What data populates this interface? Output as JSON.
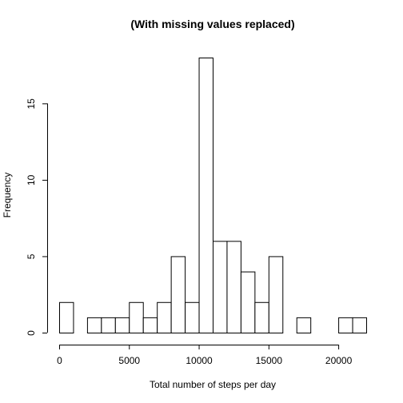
{
  "chart_data": {
    "type": "bar",
    "title": "(With missing values replaced)",
    "xlabel": "Total number of steps per day",
    "ylabel": "Frequency",
    "bin_width": 1000,
    "bins_start": [
      0,
      1000,
      2000,
      3000,
      4000,
      5000,
      6000,
      7000,
      8000,
      9000,
      10000,
      11000,
      12000,
      13000,
      14000,
      15000,
      16000,
      17000,
      18000,
      19000,
      20000,
      21000
    ],
    "values": [
      2,
      0,
      1,
      1,
      1,
      2,
      1,
      2,
      5,
      2,
      18,
      6,
      6,
      4,
      2,
      5,
      0,
      1,
      0,
      0,
      1,
      1
    ],
    "xlim": [
      0,
      22000
    ],
    "ylim": [
      0,
      18
    ],
    "x_ticks": [
      0,
      5000,
      10000,
      15000,
      20000
    ],
    "x_tick_labels": [
      "0",
      "5000",
      "10000",
      "15000",
      "20000"
    ],
    "y_ticks": [
      0,
      5,
      10,
      15
    ],
    "y_tick_labels": [
      "0",
      "5",
      "10",
      "15"
    ],
    "grid": false,
    "colors": {
      "bar_fill": "#ffffff",
      "bar_stroke": "#000000"
    }
  }
}
